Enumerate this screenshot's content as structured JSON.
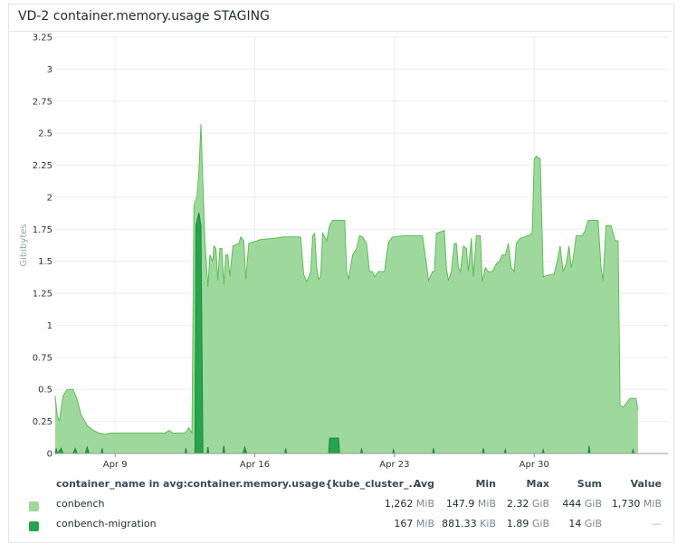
{
  "title": "VD-2 container.memory.usage STAGING",
  "chart_data": {
    "type": "area",
    "ylabel": "Gibibytes",
    "ylim": [
      0,
      3.25
    ],
    "yticks": [
      "0",
      "0.25",
      "0.5",
      "0.75",
      "1",
      "1.25",
      "1.5",
      "1.75",
      "2",
      "2.25",
      "2.5",
      "2.75",
      "3",
      "3.25"
    ],
    "xlim": [
      6.0,
      36.7
    ],
    "xticks": [
      {
        "label": "Apr 9",
        "x": 9
      },
      {
        "label": "Apr 16",
        "x": 16
      },
      {
        "label": "Apr 23",
        "x": 23
      },
      {
        "label": "Apr 30",
        "x": 30
      }
    ],
    "grid": true,
    "series": [
      {
        "name": "conbench",
        "color": "#9fd89c",
        "line_color": "#5bbf56",
        "points": [
          [
            6.0,
            0.45
          ],
          [
            6.1,
            0.3
          ],
          [
            6.2,
            0.25
          ],
          [
            6.3,
            0.35
          ],
          [
            6.4,
            0.45
          ],
          [
            6.6,
            0.5
          ],
          [
            6.9,
            0.5
          ],
          [
            7.1,
            0.42
          ],
          [
            7.3,
            0.3
          ],
          [
            7.6,
            0.22
          ],
          [
            7.9,
            0.18
          ],
          [
            8.2,
            0.16
          ],
          [
            8.5,
            0.15
          ],
          [
            8.8,
            0.16
          ],
          [
            9.5,
            0.16
          ],
          [
            10.5,
            0.16
          ],
          [
            11.5,
            0.16
          ],
          [
            11.7,
            0.18
          ],
          [
            11.9,
            0.16
          ],
          [
            12.5,
            0.16
          ],
          [
            12.7,
            0.2
          ],
          [
            12.85,
            0.16
          ],
          [
            12.95,
            1.94
          ],
          [
            13.1,
            2.0
          ],
          [
            13.2,
            2.2
          ],
          [
            13.3,
            2.57
          ],
          [
            13.4,
            2.1
          ],
          [
            13.5,
            1.66
          ],
          [
            13.65,
            1.3
          ],
          [
            13.75,
            1.55
          ],
          [
            13.9,
            1.5
          ],
          [
            13.95,
            1.62
          ],
          [
            14.05,
            1.6
          ],
          [
            14.15,
            1.35
          ],
          [
            14.25,
            1.6
          ],
          [
            14.35,
            1.6
          ],
          [
            14.45,
            1.32
          ],
          [
            14.55,
            1.55
          ],
          [
            14.65,
            1.55
          ],
          [
            14.75,
            1.38
          ],
          [
            14.9,
            1.62
          ],
          [
            15.2,
            1.64
          ],
          [
            15.3,
            1.69
          ],
          [
            15.45,
            1.66
          ],
          [
            15.55,
            1.36
          ],
          [
            15.7,
            1.64
          ],
          [
            16.3,
            1.67
          ],
          [
            17.0,
            1.68
          ],
          [
            17.4,
            1.69
          ],
          [
            18.3,
            1.69
          ],
          [
            18.45,
            1.4
          ],
          [
            18.6,
            1.34
          ],
          [
            18.8,
            1.42
          ],
          [
            18.9,
            1.7
          ],
          [
            19.0,
            1.72
          ],
          [
            19.1,
            1.45
          ],
          [
            19.2,
            1.36
          ],
          [
            19.3,
            1.38
          ],
          [
            19.4,
            1.72
          ],
          [
            19.6,
            1.66
          ],
          [
            19.75,
            1.78
          ],
          [
            19.9,
            1.82
          ],
          [
            20.5,
            1.82
          ],
          [
            20.6,
            1.42
          ],
          [
            20.7,
            1.36
          ],
          [
            20.9,
            1.55
          ],
          [
            21.1,
            1.6
          ],
          [
            21.25,
            1.7
          ],
          [
            21.4,
            1.69
          ],
          [
            21.6,
            1.64
          ],
          [
            21.75,
            1.42
          ],
          [
            21.9,
            1.42
          ],
          [
            22.0,
            1.38
          ],
          [
            22.2,
            1.42
          ],
          [
            22.5,
            1.42
          ],
          [
            22.6,
            1.55
          ],
          [
            22.7,
            1.65
          ],
          [
            22.9,
            1.69
          ],
          [
            23.5,
            1.7
          ],
          [
            24.4,
            1.7
          ],
          [
            24.6,
            1.48
          ],
          [
            24.7,
            1.35
          ],
          [
            24.9,
            1.42
          ],
          [
            25.0,
            1.42
          ],
          [
            25.1,
            1.72
          ],
          [
            25.5,
            1.74
          ],
          [
            25.6,
            1.45
          ],
          [
            25.7,
            1.35
          ],
          [
            25.85,
            1.42
          ],
          [
            26.0,
            1.64
          ],
          [
            26.1,
            1.64
          ],
          [
            26.2,
            1.45
          ],
          [
            26.3,
            1.42
          ],
          [
            26.45,
            1.62
          ],
          [
            26.6,
            1.6
          ],
          [
            26.7,
            1.42
          ],
          [
            26.85,
            1.68
          ],
          [
            26.95,
            1.38
          ],
          [
            27.1,
            1.7
          ],
          [
            27.3,
            1.7
          ],
          [
            27.4,
            1.34
          ],
          [
            27.55,
            1.45
          ],
          [
            27.7,
            1.42
          ],
          [
            27.9,
            1.42
          ],
          [
            28.1,
            1.48
          ],
          [
            28.25,
            1.5
          ],
          [
            28.4,
            1.55
          ],
          [
            28.55,
            1.55
          ],
          [
            28.7,
            1.64
          ],
          [
            28.85,
            1.45
          ],
          [
            29.0,
            1.42
          ],
          [
            29.1,
            1.64
          ],
          [
            29.3,
            1.68
          ],
          [
            29.5,
            1.69
          ],
          [
            29.7,
            1.7
          ],
          [
            29.9,
            1.72
          ],
          [
            30.0,
            2.3
          ],
          [
            30.1,
            2.32
          ],
          [
            30.3,
            2.3
          ],
          [
            30.45,
            1.38
          ],
          [
            30.6,
            1.39
          ],
          [
            31.0,
            1.4
          ],
          [
            31.15,
            1.5
          ],
          [
            31.3,
            1.62
          ],
          [
            31.45,
            1.42
          ],
          [
            31.6,
            1.48
          ],
          [
            31.75,
            1.62
          ],
          [
            31.85,
            1.45
          ],
          [
            31.95,
            1.52
          ],
          [
            32.1,
            1.7
          ],
          [
            32.4,
            1.7
          ],
          [
            32.55,
            1.74
          ],
          [
            32.7,
            1.82
          ],
          [
            33.2,
            1.82
          ],
          [
            33.35,
            1.45
          ],
          [
            33.45,
            1.35
          ],
          [
            33.6,
            1.78
          ],
          [
            33.85,
            1.78
          ],
          [
            34.05,
            1.66
          ],
          [
            34.2,
            1.66
          ],
          [
            34.3,
            0.38
          ],
          [
            34.45,
            0.36
          ],
          [
            34.65,
            0.4
          ],
          [
            34.8,
            0.43
          ],
          [
            35.1,
            0.43
          ],
          [
            35.2,
            0.34
          ]
        ]
      },
      {
        "name": "conbench-migration",
        "color": "#27a44d",
        "line_color": "#1e8a3e",
        "points": [
          [
            6.0,
            0.0
          ],
          [
            6.05,
            0.04
          ],
          [
            6.1,
            0.0
          ],
          [
            6.3,
            0.04
          ],
          [
            6.4,
            0.0
          ],
          [
            6.9,
            0.0
          ],
          [
            7.0,
            0.04
          ],
          [
            7.1,
            0.0
          ],
          [
            7.5,
            0.0
          ],
          [
            7.6,
            0.05
          ],
          [
            7.7,
            0.0
          ],
          [
            8.3,
            0.0
          ],
          [
            8.35,
            0.04
          ],
          [
            8.4,
            0.0
          ],
          [
            12.5,
            0.0
          ],
          [
            12.55,
            0.04
          ],
          [
            12.6,
            0.0
          ],
          [
            13.0,
            0.0
          ],
          [
            13.05,
            1.78
          ],
          [
            13.15,
            1.85
          ],
          [
            13.2,
            1.88
          ],
          [
            13.3,
            1.78
          ],
          [
            13.4,
            0.0
          ],
          [
            13.6,
            0.0
          ],
          [
            13.65,
            0.05
          ],
          [
            13.7,
            0.0
          ],
          [
            14.4,
            0.0
          ],
          [
            14.45,
            0.06
          ],
          [
            14.5,
            0.0
          ],
          [
            15.4,
            0.0
          ],
          [
            15.5,
            0.05
          ],
          [
            15.6,
            0.0
          ],
          [
            17.5,
            0.0
          ],
          [
            17.55,
            0.04
          ],
          [
            17.6,
            0.0
          ],
          [
            19.7,
            0.0
          ],
          [
            19.75,
            0.12
          ],
          [
            20.2,
            0.12
          ],
          [
            20.25,
            0.0
          ],
          [
            21.3,
            0.0
          ],
          [
            21.35,
            0.04
          ],
          [
            21.4,
            0.0
          ],
          [
            22.9,
            0.0
          ],
          [
            22.95,
            0.03
          ],
          [
            23.0,
            0.0
          ],
          [
            24.9,
            0.0
          ],
          [
            24.95,
            0.04
          ],
          [
            25.0,
            0.0
          ],
          [
            27.4,
            0.0
          ],
          [
            27.45,
            0.04
          ],
          [
            27.5,
            0.0
          ],
          [
            28.5,
            0.0
          ],
          [
            28.55,
            0.03
          ],
          [
            28.6,
            0.0
          ],
          [
            30.4,
            0.0
          ],
          [
            30.45,
            0.03
          ],
          [
            30.5,
            0.0
          ],
          [
            32.7,
            0.0
          ],
          [
            32.75,
            0.06
          ],
          [
            32.8,
            0.0
          ],
          [
            34.9,
            0.0
          ],
          [
            34.95,
            0.03
          ],
          [
            35.0,
            0.0
          ]
        ]
      }
    ]
  },
  "legend": {
    "header": {
      "name": "container_name in avg:container.memory.usage{kube_cluster_...",
      "avg": "Avg",
      "min": "Min",
      "max": "Max",
      "sum": "Sum",
      "value": "Value"
    },
    "rows": [
      {
        "name": "conbench",
        "color": "#9fd89c",
        "avg": "1,262",
        "avg_unit": "MiB",
        "min": "147.9",
        "min_unit": "MiB",
        "max": "2.32",
        "max_unit": "GiB",
        "sum": "444",
        "sum_unit": "GiB",
        "value": "1,730",
        "value_unit": "MiB"
      },
      {
        "name": "conbench-migration",
        "color": "#27a44d",
        "avg": "167",
        "avg_unit": "MiB",
        "min": "881.33",
        "min_unit": "KiB",
        "max": "1.89",
        "max_unit": "GiB",
        "sum": "14",
        "sum_unit": "GiB",
        "value": "—",
        "value_unit": ""
      }
    ]
  }
}
